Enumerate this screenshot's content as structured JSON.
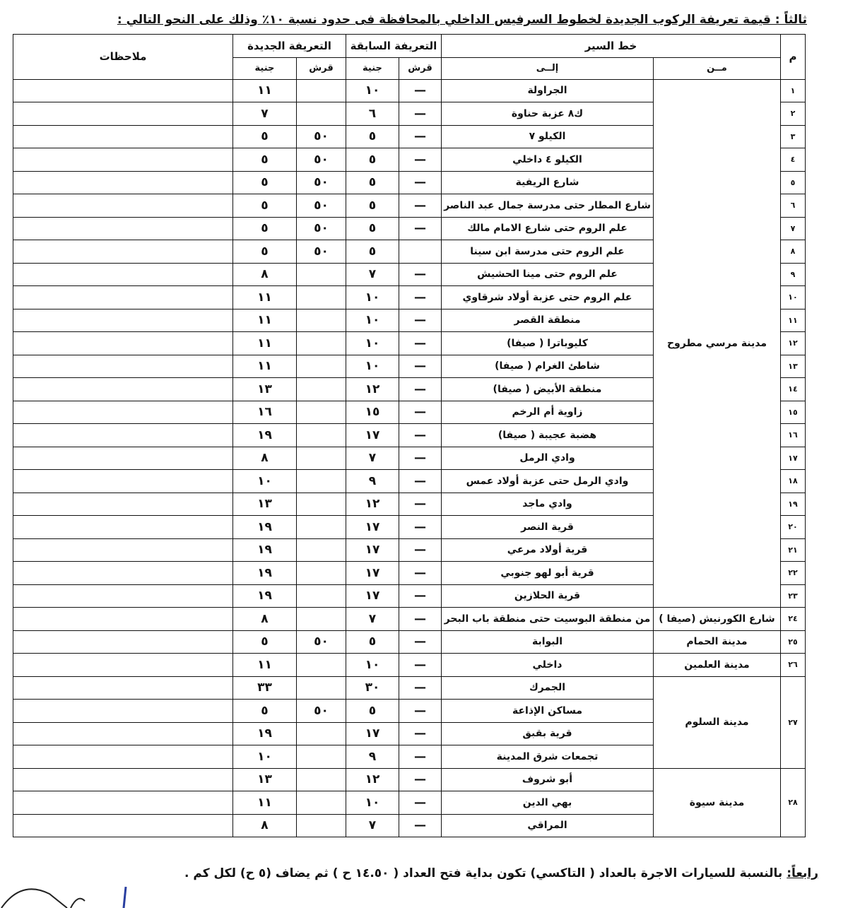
{
  "title": "ثالثاً : قيمة تعريفة الركوب الجديدة لخطوط السرفيس الداخلي بالمحافظة فى حدود نسبة ١٠٪ وذلك على النحو التالي :",
  "headers": {
    "num": "م",
    "route": "خط السير",
    "from": "مــن",
    "to": "إلــى",
    "prev_fare": "التعريفة السابقة",
    "new_fare": "التعريفة الجديدة",
    "qirsh": "قرش",
    "pound": "جنية",
    "notes": "ملاحظات"
  },
  "groups": [
    {
      "from": "مدينة مرسي مطروح",
      "items": [
        {
          "num": "١",
          "to": "الجراولة",
          "prev_qirsh": "—",
          "prev_pound": "١٠",
          "new_qirsh": "",
          "new_pound": "١١"
        },
        {
          "num": "٢",
          "to": "ك٨ عزبة حناوة",
          "prev_qirsh": "—",
          "prev_pound": "٦",
          "new_qirsh": "",
          "new_pound": "٧"
        },
        {
          "num": "٣",
          "to": "الكيلو ٧",
          "prev_qirsh": "—",
          "prev_pound": "٥",
          "new_qirsh": "٥٠",
          "new_pound": "٥"
        },
        {
          "num": "٤",
          "to": "الكيلو ٤ داخلي",
          "prev_qirsh": "—",
          "prev_pound": "٥",
          "new_qirsh": "٥٠",
          "new_pound": "٥"
        },
        {
          "num": "٥",
          "to": "شارع الريفية",
          "prev_qirsh": "—",
          "prev_pound": "٥",
          "new_qirsh": "٥٠",
          "new_pound": "٥"
        },
        {
          "num": "٦",
          "to": "شارع المطار حتى مدرسة جمال عبد الناصر",
          "prev_qirsh": "—",
          "prev_pound": "٥",
          "new_qirsh": "٥٠",
          "new_pound": "٥"
        },
        {
          "num": "٧",
          "to": "علم الروم حتى شارع الامام مالك",
          "prev_qirsh": "—",
          "prev_pound": "٥",
          "new_qirsh": "٥٠",
          "new_pound": "٥"
        },
        {
          "num": "٨",
          "to": "علم الروم حتى مدرسة ابن سينا",
          "prev_qirsh": "",
          "prev_pound": "٥",
          "new_qirsh": "٥٠",
          "new_pound": "٥"
        },
        {
          "num": "٩",
          "to": "علم الروم حتى مينا الحشيش",
          "prev_qirsh": "—",
          "prev_pound": "٧",
          "new_qirsh": "",
          "new_pound": "٨"
        },
        {
          "num": "١٠",
          "to": "علم الروم حتى عزبة أولاد شرقاوي",
          "prev_qirsh": "—",
          "prev_pound": "١٠",
          "new_qirsh": "",
          "new_pound": "١١"
        },
        {
          "num": "١١",
          "to": "منطقة القصر",
          "prev_qirsh": "—",
          "prev_pound": "١٠",
          "new_qirsh": "",
          "new_pound": "١١"
        },
        {
          "num": "١٢",
          "to": "كليوباترا ( صيفا)",
          "prev_qirsh": "—",
          "prev_pound": "١٠",
          "new_qirsh": "",
          "new_pound": "١١"
        },
        {
          "num": "١٣",
          "to": "شاطئ الغرام ( صيفا)",
          "prev_qirsh": "—",
          "prev_pound": "١٠",
          "new_qirsh": "",
          "new_pound": "١١"
        },
        {
          "num": "١٤",
          "to": "منطقة الأبيض ( صيفا)",
          "prev_qirsh": "—",
          "prev_pound": "١٢",
          "new_qirsh": "",
          "new_pound": "١٣"
        },
        {
          "num": "١٥",
          "to": "زاوية أم الرخم",
          "prev_qirsh": "—",
          "prev_pound": "١٥",
          "new_qirsh": "",
          "new_pound": "١٦"
        },
        {
          "num": "١٦",
          "to": "هضبة عجيبة ( صيفا)",
          "prev_qirsh": "—",
          "prev_pound": "١٧",
          "new_qirsh": "",
          "new_pound": "١٩"
        },
        {
          "num": "١٧",
          "to": "وادي الرمل",
          "prev_qirsh": "—",
          "prev_pound": "٧",
          "new_qirsh": "",
          "new_pound": "٨"
        },
        {
          "num": "١٨",
          "to": "وادي الرمل حتى عزبة أولاد عمس",
          "prev_qirsh": "—",
          "prev_pound": "٩",
          "new_qirsh": "",
          "new_pound": "١٠"
        },
        {
          "num": "١٩",
          "to": "وادي ماجد",
          "prev_qirsh": "—",
          "prev_pound": "١٢",
          "new_qirsh": "",
          "new_pound": "١٣"
        },
        {
          "num": "٢٠",
          "to": "قرية النصر",
          "prev_qirsh": "—",
          "prev_pound": "١٧",
          "new_qirsh": "",
          "new_pound": "١٩"
        },
        {
          "num": "٢١",
          "to": "قرية أولاد مرعي",
          "prev_qirsh": "—",
          "prev_pound": "١٧",
          "new_qirsh": "",
          "new_pound": "١٩"
        },
        {
          "num": "٢٢",
          "to": "قرية أبو لهو جنوبي",
          "prev_qirsh": "—",
          "prev_pound": "١٧",
          "new_qirsh": "",
          "new_pound": "١٩"
        },
        {
          "num": "٢٣",
          "to": "قرية الحلازين",
          "prev_qirsh": "—",
          "prev_pound": "١٧",
          "new_qirsh": "",
          "new_pound": "١٩"
        }
      ]
    },
    {
      "from": "شارع الكورنيش (صيفا )",
      "items": [
        {
          "num": "٢٤",
          "to": "من منطقة البوسيت حتى منطقة باب البحر",
          "prev_qirsh": "—",
          "prev_pound": "٧",
          "new_qirsh": "",
          "new_pound": "٨"
        }
      ]
    },
    {
      "from": "مدينة الحمام",
      "items": [
        {
          "num": "٢٥",
          "to": "البوابة",
          "prev_qirsh": "—",
          "prev_pound": "٥",
          "new_qirsh": "٥٠",
          "new_pound": "٥"
        }
      ]
    },
    {
      "from": "مدينة العلمين",
      "items": [
        {
          "num": "٢٦",
          "to": "داخلي",
          "prev_qirsh": "—",
          "prev_pound": "١٠",
          "new_qirsh": "",
          "new_pound": "١١"
        }
      ]
    },
    {
      "from": "مدينة السلوم",
      "num": "٢٧",
      "items": [
        {
          "to": "الجمرك",
          "prev_qirsh": "—",
          "prev_pound": "٣٠",
          "new_qirsh": "",
          "new_pound": "٣٣"
        },
        {
          "to": "مساكن الإذاعة",
          "prev_qirsh": "—",
          "prev_pound": "٥",
          "new_qirsh": "٥٠",
          "new_pound": "٥"
        },
        {
          "to": "قرية بقبق",
          "prev_qirsh": "—",
          "prev_pound": "١٧",
          "new_qirsh": "",
          "new_pound": "١٩"
        },
        {
          "to": "تجمعات شرق المدينة",
          "prev_qirsh": "—",
          "prev_pound": "٩",
          "new_qirsh": "",
          "new_pound": "١٠"
        }
      ]
    },
    {
      "from": "مدينة سيوة",
      "num": "٢٨",
      "items": [
        {
          "to": "أبو شروف",
          "prev_qirsh": "—",
          "prev_pound": "١٢",
          "new_qirsh": "",
          "new_pound": "١٣"
        },
        {
          "to": "بهي الدين",
          "prev_qirsh": "—",
          "prev_pound": "١٠",
          "new_qirsh": "",
          "new_pound": "١١"
        },
        {
          "to": "المراقي",
          "prev_qirsh": "—",
          "prev_pound": "٧",
          "new_qirsh": "",
          "new_pound": "٨"
        }
      ]
    }
  ],
  "footer": {
    "label": "رابعاً:",
    "text": "بالنسبة للسيارات الاجرة بالعداد ( التاكسي) تكون بداية فتح العداد ( ١٤.٥٠ ح ) ثم يضاف (٥ ح) لكل كم ."
  },
  "handwriting": "١٦"
}
